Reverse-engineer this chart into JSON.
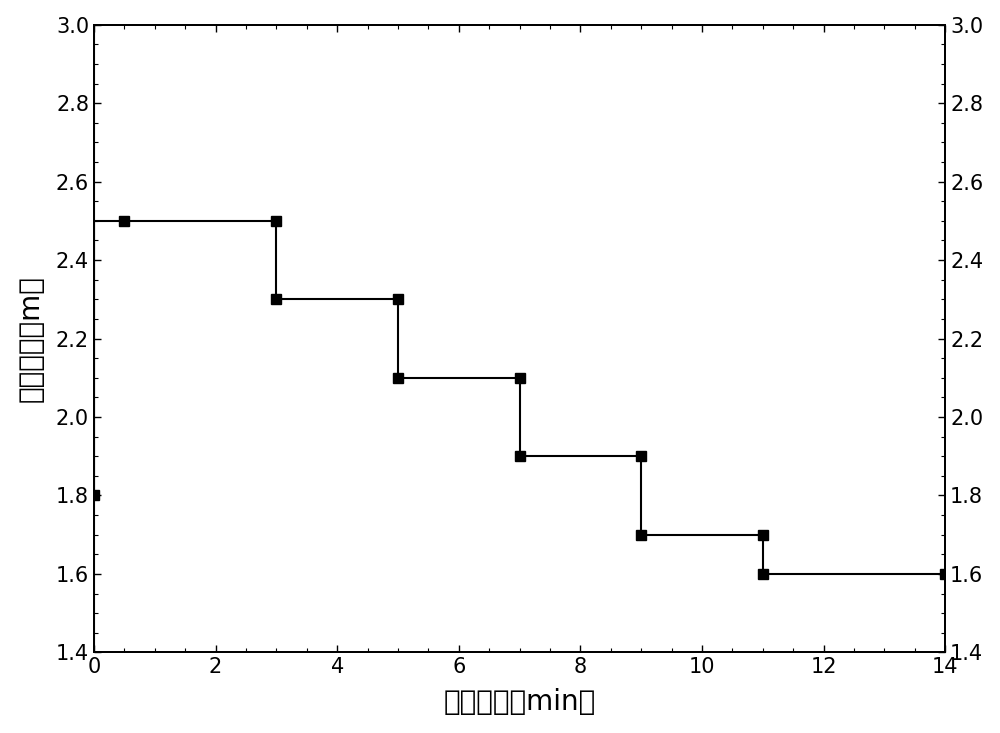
{
  "x": [
    0,
    0,
    0.5,
    3,
    3,
    5,
    5,
    7,
    7,
    9,
    9,
    11,
    11,
    14
  ],
  "y": [
    1.8,
    2.5,
    2.5,
    2.5,
    2.3,
    2.3,
    2.1,
    2.1,
    1.9,
    1.9,
    1.7,
    1.7,
    1.6,
    1.6
  ],
  "vertical_line_x": [
    0,
    0
  ],
  "vertical_line_y": [
    1.4,
    3.0
  ],
  "marker_x": [
    0,
    0.5,
    3,
    3,
    5,
    5,
    7,
    7,
    9,
    9,
    11,
    11,
    14
  ],
  "marker_y": [
    1.8,
    2.5,
    2.5,
    2.3,
    2.3,
    2.1,
    2.1,
    1.9,
    1.9,
    1.7,
    1.7,
    1.6,
    1.6
  ],
  "xlim": [
    0,
    14
  ],
  "ylim": [
    1.4,
    3.0
  ],
  "xticks": [
    0,
    2,
    4,
    6,
    8,
    10,
    12,
    14
  ],
  "yticks": [
    1.4,
    1.6,
    1.8,
    2.0,
    2.2,
    2.4,
    2.6,
    2.8,
    3.0
  ],
  "xlabel": "供氧时间（min）",
  "ylabel": "氯枪高度（m）",
  "line_color": "#000000",
  "marker_color": "#000000",
  "marker_style": "s",
  "marker_size": 7,
  "line_width": 1.5,
  "xlabel_fontsize": 20,
  "ylabel_fontsize": 20,
  "tick_fontsize": 15,
  "figure_width": 10.0,
  "figure_height": 7.33,
  "bg_color": "#ffffff"
}
